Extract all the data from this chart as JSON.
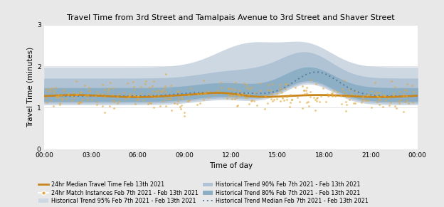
{
  "title": "Travel Time from 3rd Street and Tamalpais Avenue to 3rd Street and Shaver Street",
  "xlabel": "Time of day",
  "ylabel": "Travel Time (minutes)",
  "ylim": [
    0,
    3
  ],
  "yticks": [
    0,
    1,
    2,
    3
  ],
  "xtick_labels": [
    "00:00",
    "03:00",
    "06:00",
    "09:00",
    "12:00",
    "15:00",
    "18:00",
    "21:00",
    "00:00"
  ],
  "fig_bg_color": "#e8e8e8",
  "plot_bg_color": "#ffffff",
  "band_95_color": "#cdd8e3",
  "band_90_color": "#afc3d4",
  "band_80_color": "#8dafc6",
  "median_line_color": "#5a7d9a",
  "orange_line_color": "#c8861a",
  "scatter_color": "#e8a838",
  "grid_color": "#e0e0e0",
  "legend_items": [
    "24hr Median Travel Time Feb 13th 2021",
    "24hr Match Instances Feb 7th 2021 - Feb 13th 2021",
    "Historical Trend 95% Feb 7th 2021 - Feb 13th 2021",
    "Historical Trend 90% Feb 7th 2021 - Feb 13th 2021",
    "Historical Trend 80% Feb 7th 2021 - Feb 13th 2021",
    "Historical Trend Median Feb 7th 2021 - Feb 13th 2021"
  ]
}
